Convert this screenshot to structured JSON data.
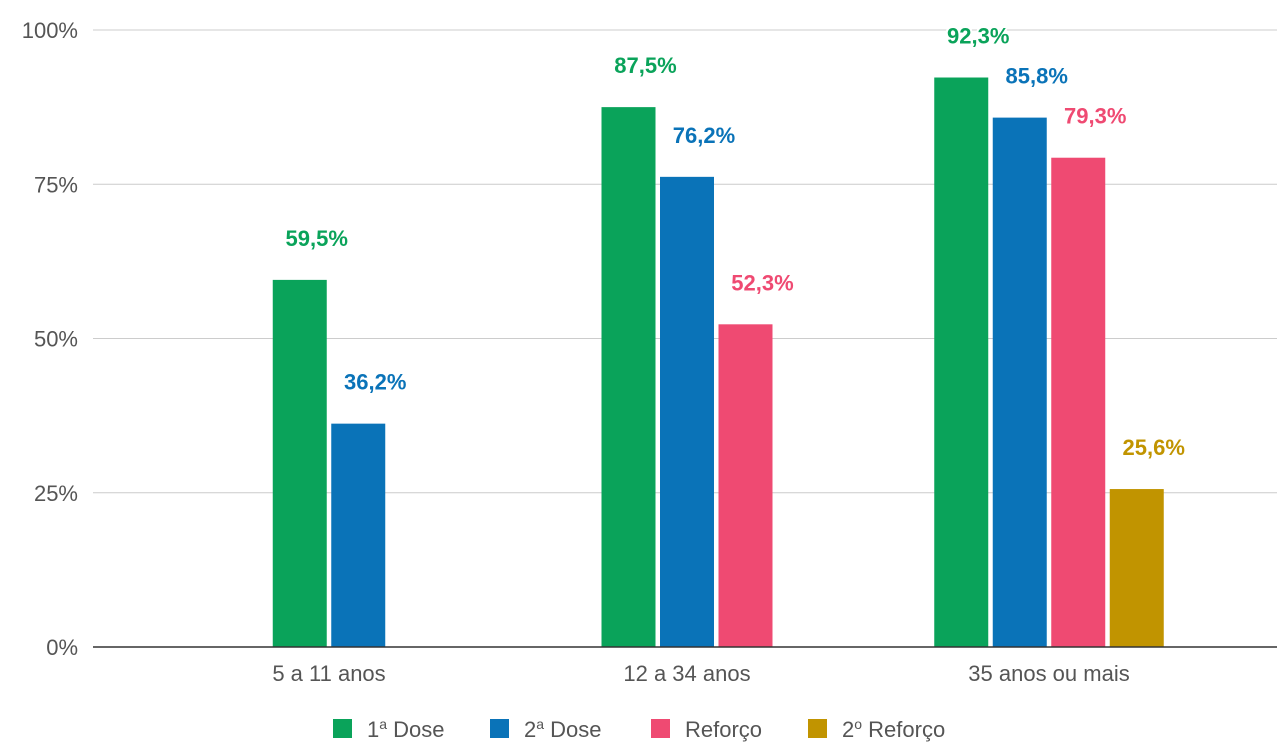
{
  "chart_data": {
    "type": "bar",
    "categories": [
      "5 a 11 anos",
      "12 a 34 anos",
      "35 anos ou mais"
    ],
    "series": [
      {
        "name": "1ª Dose",
        "legend_main": "1",
        "legend_sup": "a",
        "legend_rest": " Dose",
        "color": "#0aa35a",
        "values": [
          59.5,
          87.5,
          92.3
        ],
        "labels": [
          "59,5%",
          "87,5%",
          "92,3%"
        ]
      },
      {
        "name": "2ª Dose",
        "legend_main": "2",
        "legend_sup": "a",
        "legend_rest": " Dose",
        "color": "#0a73b8",
        "values": [
          36.2,
          76.2,
          85.8
        ],
        "labels": [
          "36,2%",
          "76,2%",
          "85,8%"
        ]
      },
      {
        "name": "Reforço",
        "legend_main": "Reforço",
        "legend_sup": "",
        "legend_rest": "",
        "color": "#ef4a72",
        "values": [
          null,
          52.3,
          79.3
        ],
        "labels": [
          "",
          "52,3%",
          "79,3%"
        ]
      },
      {
        "name": "2º Reforço",
        "legend_main": "2",
        "legend_sup": "o",
        "legend_rest": " Reforço",
        "color": "#c19400",
        "values": [
          null,
          null,
          25.6
        ],
        "labels": [
          "",
          "",
          "25,6%"
        ]
      }
    ],
    "yticks": [
      {
        "value": 0,
        "label": "0%"
      },
      {
        "value": 25,
        "label": "25%"
      },
      {
        "value": 50,
        "label": "50%"
      },
      {
        "value": 75,
        "label": "75%"
      },
      {
        "value": 100,
        "label": "100%"
      }
    ],
    "ylim": [
      0,
      100
    ],
    "grid": true,
    "legend_position": "bottom",
    "title": "",
    "xlabel": "",
    "ylabel": ""
  }
}
